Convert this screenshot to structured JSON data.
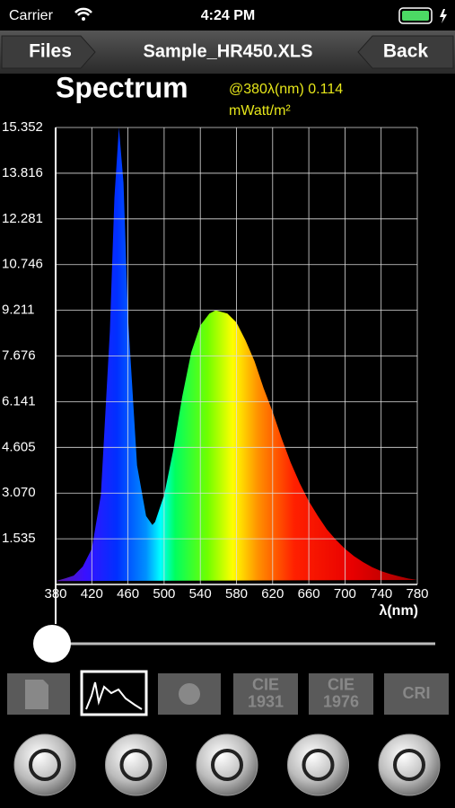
{
  "status_bar": {
    "carrier": "Carrier",
    "time": "4:24 PM"
  },
  "nav": {
    "left_button": "Files",
    "title": "Sample_HR450.XLS",
    "right_button": "Back"
  },
  "chart_data": {
    "type": "area",
    "title": "Spectrum",
    "annotation": [
      "@380λ(nm) 0.114",
      "mWatt/m²"
    ],
    "x_label": "λ(nm)",
    "x": [
      380,
      390,
      400,
      410,
      420,
      430,
      440,
      445,
      450,
      455,
      460,
      470,
      480,
      487,
      490,
      500,
      510,
      520,
      530,
      540,
      550,
      557,
      570,
      580,
      590,
      600,
      610,
      620,
      630,
      640,
      650,
      660,
      670,
      680,
      690,
      700,
      710,
      720,
      730,
      740,
      750,
      760,
      770,
      780
    ],
    "values": [
      0.114,
      0.2,
      0.3,
      0.6,
      1.2,
      3.0,
      8.5,
      13.0,
      15.352,
      13.5,
      9.0,
      4.0,
      2.3,
      2.0,
      2.1,
      3.0,
      4.5,
      6.3,
      7.8,
      8.7,
      9.1,
      9.211,
      9.1,
      8.8,
      8.2,
      7.5,
      6.6,
      5.8,
      4.9,
      4.1,
      3.4,
      2.8,
      2.3,
      1.85,
      1.5,
      1.2,
      0.95,
      0.75,
      0.58,
      0.45,
      0.35,
      0.27,
      0.2,
      0.15
    ],
    "xlim": [
      380,
      780
    ],
    "ylim": [
      0,
      15.352
    ],
    "xticks": [
      380,
      420,
      460,
      500,
      540,
      580,
      620,
      660,
      700,
      740,
      780
    ],
    "yticks": [
      1.535,
      {
        "value": 3.07,
        "label": "3.070"
      },
      4.605,
      6.141,
      7.676,
      9.211,
      10.746,
      12.281,
      13.816,
      15.352
    ],
    "grid": true
  },
  "toolbar": {
    "tab_labels": [
      [
        "CIE",
        "1931"
      ],
      [
        "CIE",
        "1976"
      ],
      [
        "CRI"
      ]
    ]
  }
}
